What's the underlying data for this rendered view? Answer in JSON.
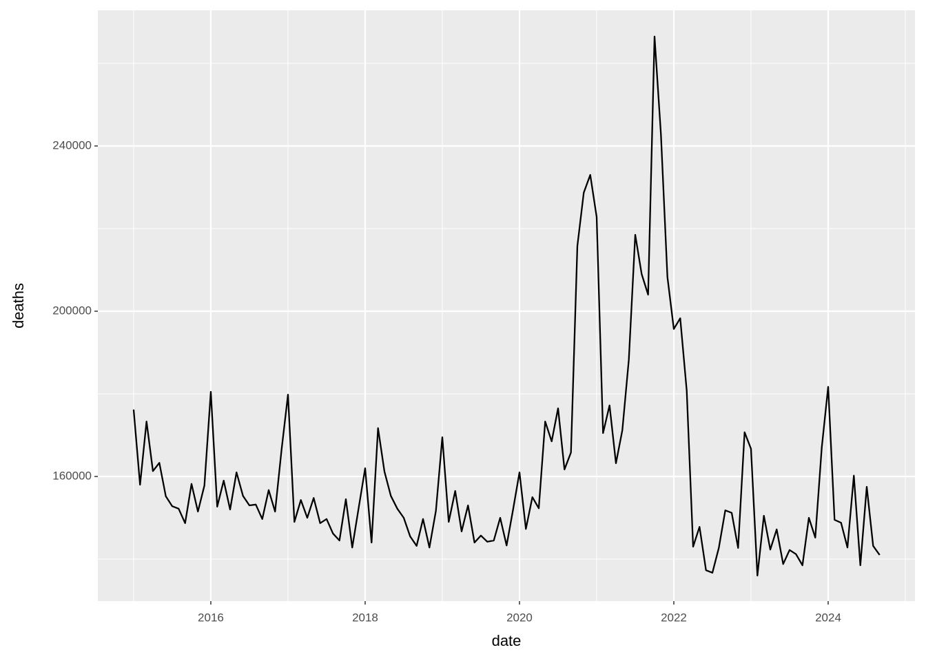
{
  "chart_data": {
    "type": "line",
    "x_label": "date",
    "y_label": "deaths",
    "x": [
      2015,
      2015.083,
      2015.167,
      2015.25,
      2015.333,
      2015.417,
      2015.5,
      2015.583,
      2015.667,
      2015.75,
      2015.833,
      2015.917,
      2016,
      2016.083,
      2016.167,
      2016.25,
      2016.333,
      2016.417,
      2016.5,
      2016.583,
      2016.667,
      2016.75,
      2016.833,
      2016.917,
      2017,
      2017.083,
      2017.167,
      2017.25,
      2017.333,
      2017.417,
      2017.5,
      2017.583,
      2017.667,
      2017.75,
      2017.833,
      2017.917,
      2018,
      2018.083,
      2018.167,
      2018.25,
      2018.333,
      2018.417,
      2018.5,
      2018.583,
      2018.667,
      2018.75,
      2018.833,
      2018.917,
      2019,
      2019.083,
      2019.167,
      2019.25,
      2019.333,
      2019.417,
      2019.5,
      2019.583,
      2019.667,
      2019.75,
      2019.833,
      2019.917,
      2020,
      2020.083,
      2020.167,
      2020.25,
      2020.333,
      2020.417,
      2020.5,
      2020.583,
      2020.667,
      2020.75,
      2020.833,
      2020.917,
      2021,
      2021.083,
      2021.167,
      2021.25,
      2021.333,
      2021.417,
      2021.5,
      2021.583,
      2021.667,
      2021.75,
      2021.833,
      2021.917,
      2022,
      2022.083,
      2022.167,
      2022.25,
      2022.333,
      2022.417,
      2022.5,
      2022.583,
      2022.667,
      2022.75,
      2022.833,
      2022.917,
      2023,
      2023.083,
      2023.167,
      2023.25,
      2023.333,
      2023.417,
      2023.5,
      2023.583,
      2023.667,
      2023.75,
      2023.833,
      2023.917,
      2024,
      2024.083,
      2024.167,
      2024.25,
      2024.333,
      2024.417,
      2024.5,
      2024.583,
      2024.667
    ],
    "values": [
      176200,
      158000,
      173300,
      161300,
      163300,
      155200,
      152800,
      152200,
      148700,
      158200,
      151500,
      157800,
      180500,
      152700,
      159000,
      152000,
      161000,
      155300,
      153000,
      153200,
      149700,
      156700,
      151500,
      166500,
      179800,
      149000,
      154300,
      150000,
      154800,
      148700,
      149700,
      146200,
      144500,
      154500,
      142800,
      152500,
      162000,
      144000,
      171700,
      161200,
      155300,
      152200,
      150000,
      145500,
      143200,
      149700,
      142800,
      151700,
      169500,
      149000,
      156500,
      146700,
      153000,
      144000,
      145700,
      144200,
      144500,
      150000,
      143300,
      152000,
      161000,
      147300,
      155000,
      152300,
      173300,
      168500,
      176500,
      161700,
      165800,
      215800,
      228700,
      233000,
      222800,
      170500,
      177200,
      163200,
      171200,
      188300,
      218500,
      209000,
      204000,
      266500,
      242800,
      208300,
      195700,
      198300,
      180800,
      143000,
      147800,
      137300,
      136700,
      142700,
      151800,
      151200,
      142700,
      170700,
      166700,
      136000,
      150500,
      142300,
      147200,
      138800,
      142200,
      141200,
      138500,
      150000,
      145200,
      167000,
      181700,
      149500,
      148800,
      142800,
      160200,
      138500,
      157500,
      143200,
      141000
    ],
    "color": "#000000",
    "xlim": [
      2014.536,
      2025.125
    ],
    "xticks": [
      2016,
      2018,
      2020,
      2022,
      2024
    ],
    "ylim": [
      129833,
      272833
    ],
    "yticks": [
      160000,
      200000,
      240000
    ],
    "grid": true
  }
}
